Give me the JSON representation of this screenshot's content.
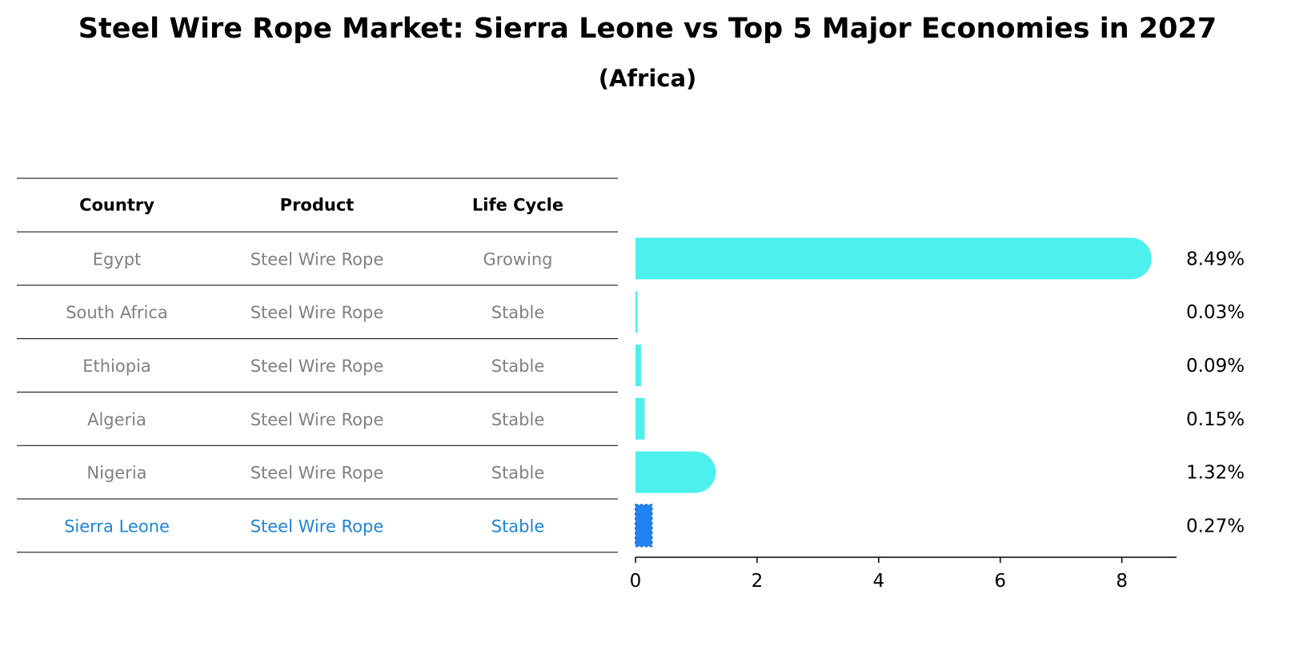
{
  "chart_data": {
    "type": "bar",
    "orientation": "horizontal",
    "title": "Steel Wire Rope Market: Sierra Leone vs Top 5 Major Economies in 2027",
    "subtitle": "(Africa)",
    "table": {
      "headers": [
        "Country",
        "Product",
        "Life Cycle"
      ],
      "rows": [
        [
          "Egypt",
          "Steel Wire Rope",
          "Growing"
        ],
        [
          "South Africa",
          "Steel Wire Rope",
          "Stable"
        ],
        [
          "Ethiopia",
          "Steel Wire Rope",
          "Stable"
        ],
        [
          "Algeria",
          "Steel Wire Rope",
          "Stable"
        ],
        [
          "Nigeria",
          "Steel Wire Rope",
          "Stable"
        ],
        [
          "Sierra Leone",
          "Steel Wire Rope",
          "Stable"
        ]
      ],
      "highlight_row": 5
    },
    "categories": [
      "Egypt",
      "South Africa",
      "Ethiopia",
      "Algeria",
      "Nigeria",
      "Sierra Leone"
    ],
    "values": [
      8.49,
      0.03,
      0.09,
      0.15,
      1.32,
      0.27
    ],
    "value_labels": [
      "8.49%",
      "0.03%",
      "0.09%",
      "0.15%",
      "1.32%",
      "0.27%"
    ],
    "xlim": [
      0,
      8.9
    ],
    "xticks": [
      0,
      2,
      4,
      6,
      8
    ],
    "xtick_labels": [
      "0",
      "2",
      "4",
      "6",
      "8"
    ],
    "grid": false,
    "colors": {
      "bar": "#4cf0ec",
      "highlight_bar": "#1f84f0",
      "highlight_text": "#1f84d8",
      "table_text": "#808080"
    }
  }
}
